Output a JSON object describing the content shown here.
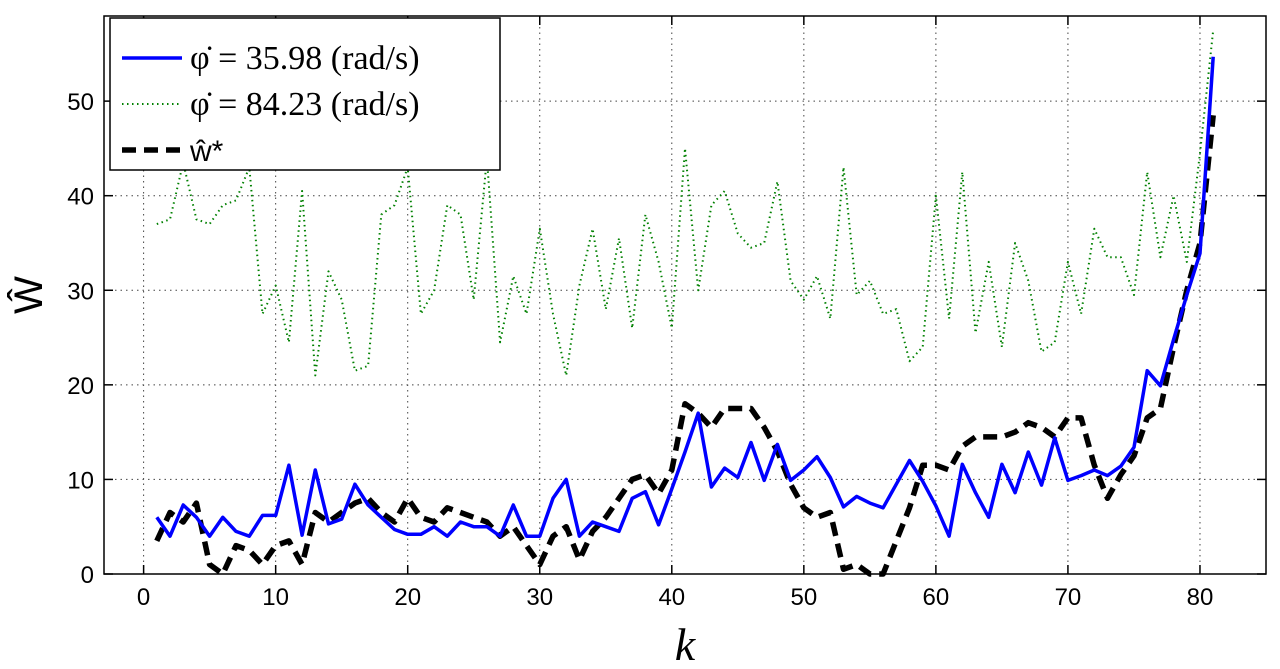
{
  "chart_data": {
    "type": "line",
    "xlabel": "k",
    "ylabel": "Ŵ",
    "xlim": [
      -3,
      85
    ],
    "ylim": [
      0,
      59
    ],
    "xticks": [
      0,
      10,
      20,
      30,
      40,
      50,
      60,
      70,
      80
    ],
    "yticks": [
      0,
      10,
      20,
      30,
      40,
      50
    ],
    "grid": true,
    "legend_position": "top-left",
    "series": [
      {
        "name": "φ̇ = 35.98 (rad/s)",
        "style": "solid",
        "color": "#0000ff",
        "x": [
          1,
          2,
          3,
          4,
          5,
          6,
          7,
          8,
          9,
          10,
          11,
          12,
          13,
          14,
          15,
          16,
          17,
          18,
          19,
          20,
          21,
          22,
          23,
          24,
          25,
          26,
          27,
          28,
          29,
          30,
          31,
          32,
          33,
          34,
          35,
          36,
          37,
          38,
          39,
          40,
          41,
          42,
          43,
          44,
          45,
          46,
          47,
          48,
          49,
          50,
          51,
          52,
          53,
          54,
          55,
          56,
          57,
          58,
          59,
          60,
          61,
          62,
          63,
          64,
          65,
          66,
          67,
          68,
          69,
          70,
          71,
          72,
          73,
          74,
          75,
          76,
          77,
          78,
          79,
          80,
          81
        ],
        "values": [
          6,
          4,
          7.3,
          6,
          4,
          6,
          4.5,
          4,
          6.2,
          6.2,
          11.5,
          4.1,
          11,
          5.3,
          5.8,
          9.5,
          7.3,
          6,
          4.7,
          4.2,
          4.2,
          5,
          4,
          5.5,
          5,
          5,
          4,
          7.3,
          4,
          4,
          8,
          10,
          4,
          5.5,
          5,
          4.5,
          8,
          8.7,
          5.2,
          9,
          12.9,
          17,
          9.2,
          11.2,
          10.2,
          13.9,
          9.9,
          13.7,
          9.9,
          11,
          12.4,
          10.2,
          7.1,
          8.2,
          7.5,
          7,
          9.5,
          12,
          9.8,
          7.2,
          4,
          11.6,
          8.6,
          6,
          11.6,
          8.6,
          12.9,
          9.4,
          14.4,
          9.9,
          10.4,
          11,
          10.4,
          11.4,
          13.4,
          21.5,
          19.9,
          24.8,
          29.5,
          33.9,
          54.7
        ]
      },
      {
        "name": "φ̇ = 84.23 (rad/s)",
        "style": "dotted",
        "color": "#008000",
        "x": [
          1,
          2,
          3,
          4,
          5,
          6,
          7,
          8,
          9,
          10,
          11,
          12,
          13,
          14,
          15,
          16,
          17,
          18,
          19,
          20,
          21,
          22,
          23,
          24,
          25,
          26,
          27,
          28,
          29,
          30,
          31,
          32,
          33,
          34,
          35,
          36,
          37,
          38,
          39,
          40,
          41,
          42,
          43,
          44,
          45,
          46,
          47,
          48,
          49,
          50,
          51,
          52,
          53,
          54,
          55,
          56,
          57,
          58,
          59,
          60,
          61,
          62,
          63,
          64,
          65,
          66,
          67,
          68,
          69,
          70,
          71,
          72,
          73,
          74,
          75,
          76,
          77,
          78,
          79,
          80,
          81
        ],
        "values": [
          37,
          37.5,
          43.5,
          37.5,
          37,
          39,
          39.5,
          43,
          27.5,
          30.5,
          24.5,
          40.5,
          21,
          32,
          29,
          21.5,
          22,
          38,
          39,
          43,
          27.5,
          30,
          39,
          38,
          29,
          44,
          24.5,
          31.5,
          27.5,
          36.5,
          27.5,
          21,
          30.5,
          36.5,
          28,
          35.5,
          26,
          38,
          33,
          26,
          45,
          30,
          39,
          40.5,
          36,
          34.5,
          35,
          41.5,
          31,
          29,
          31.5,
          27,
          43,
          29.5,
          31,
          27.5,
          28,
          22.5,
          24,
          40,
          27,
          42.5,
          25.5,
          33,
          24,
          35,
          31,
          23.5,
          24.5,
          33,
          27.5,
          36.5,
          33.5,
          33.5,
          29.5,
          42.5,
          33.5,
          40,
          33,
          44.5,
          57.5
        ]
      },
      {
        "name": "ŵ*",
        "style": "dashed",
        "color": "#000000",
        "x": [
          1,
          2,
          3,
          4,
          5,
          6,
          7,
          8,
          9,
          10,
          11,
          12,
          13,
          14,
          15,
          16,
          17,
          18,
          19,
          20,
          21,
          22,
          23,
          24,
          25,
          26,
          27,
          28,
          29,
          30,
          31,
          32,
          33,
          34,
          35,
          36,
          37,
          38,
          39,
          40,
          41,
          42,
          43,
          44,
          45,
          46,
          47,
          48,
          49,
          50,
          51,
          52,
          53,
          54,
          55,
          56,
          57,
          58,
          59,
          60,
          61,
          62,
          63,
          64,
          65,
          66,
          67,
          68,
          69,
          70,
          71,
          72,
          73,
          74,
          75,
          76,
          77,
          78,
          79,
          80,
          81
        ],
        "values": [
          3.5,
          6.5,
          5.5,
          7.5,
          1,
          0,
          3,
          2.5,
          1,
          3,
          3.5,
          1,
          6.5,
          5.5,
          6.5,
          7.5,
          8,
          6.5,
          5.5,
          8,
          6,
          5.5,
          7,
          6.5,
          6,
          5.5,
          4,
          5,
          3,
          1,
          4,
          5,
          1.5,
          4.5,
          6,
          8,
          10,
          10.5,
          8.5,
          11,
          18,
          17,
          15.5,
          17.5,
          17.5,
          17.5,
          15.5,
          13,
          9.5,
          7,
          6,
          6.5,
          0.5,
          1,
          0,
          0,
          3.5,
          7,
          11.5,
          11.5,
          11,
          13.5,
          14.5,
          14.5,
          14.5,
          15,
          16,
          15.5,
          14.5,
          16.5,
          16.5,
          11.5,
          8,
          10.5,
          12.5,
          16.5,
          17.5,
          24,
          30,
          35,
          48.5
        ]
      }
    ]
  }
}
